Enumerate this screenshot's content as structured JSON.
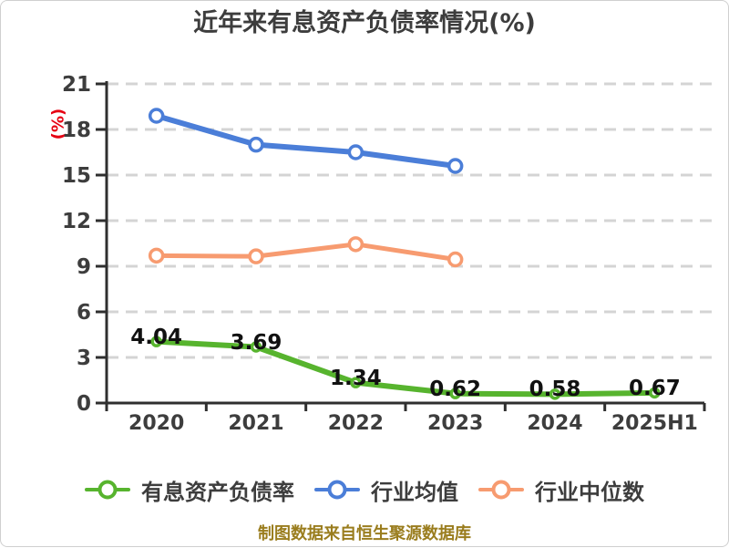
{
  "footer": {
    "source_note": "制图数据来自恒生聚源数据库"
  },
  "chart_data": {
    "type": "line",
    "title": "近年来有息资产负债率情况(%)",
    "ylabel": "(%)",
    "xlabel": "",
    "categories": [
      "2020",
      "2021",
      "2022",
      "2023",
      "2024",
      "2025H1"
    ],
    "ylim": [
      0,
      21
    ],
    "y_ticks": [
      0,
      3,
      6,
      9,
      12,
      15,
      18,
      21
    ],
    "grid": "horizontal-dashed",
    "legend_position": "bottom",
    "series": [
      {
        "name": "有息资产负债率",
        "color": "#57b42e",
        "marker": "circle",
        "values": [
          4.04,
          3.69,
          1.34,
          0.62,
          0.58,
          0.67
        ],
        "point_labels": [
          "4.04",
          "3.69",
          "1.34",
          "0.62",
          "0.58",
          "0.67"
        ]
      },
      {
        "name": "行业均值",
        "color": "#4b7ed8",
        "marker": "circle",
        "values": [
          18.9,
          17.0,
          16.5,
          15.6
        ]
      },
      {
        "name": "行业中位数",
        "color": "#f79b70",
        "marker": "circle",
        "values": [
          9.7,
          9.65,
          10.45,
          9.45
        ]
      }
    ],
    "colors": {
      "title": "#3d3d3d",
      "axis": "#2f2f2f",
      "grid": "#d4d4d4",
      "tick_label": "#3d3d3d",
      "point_label": "#111111",
      "ylabel": "#e60012",
      "footer": "#9a7d1e"
    }
  }
}
